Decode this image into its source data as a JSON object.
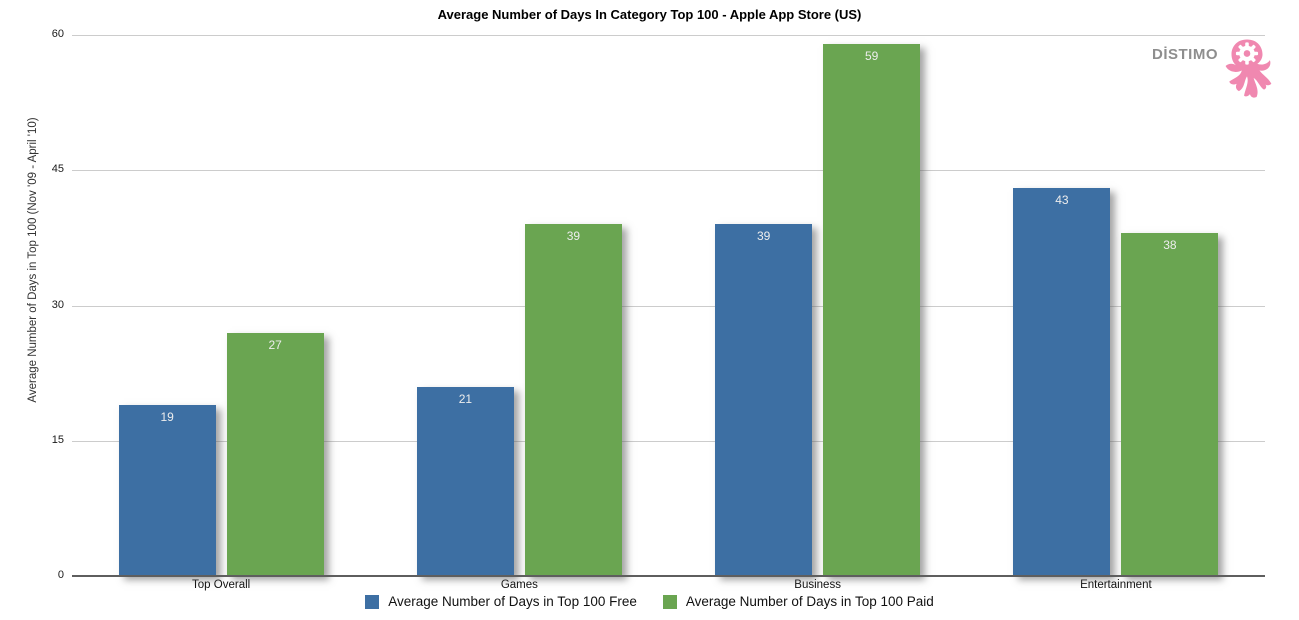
{
  "title": "Average Number of Days In Category Top 100 - Apple App Store (US)",
  "logo": {
    "text": "DİSTIMO",
    "icon": "octopus-gear-icon",
    "pink": "#f088b0",
    "gray": "#8e8e8e"
  },
  "chart_data": {
    "type": "bar",
    "categories": [
      "Top Overall",
      "Games",
      "Business",
      "Entertainment"
    ],
    "series": [
      {
        "name": "Average Number of Days in Top 100 Free",
        "color": "#3d6fa3",
        "values": [
          19,
          21,
          39,
          43
        ]
      },
      {
        "name": "Average Number of Days in Top 100 Paid",
        "color": "#6aa551",
        "values": [
          27,
          39,
          59,
          38
        ]
      }
    ],
    "title": "Average Number of Days In Category Top 100 - Apple App Store (US)",
    "xlabel": "",
    "ylabel": "Average Number of Days in Top 100 (Nov '09 - April '10)",
    "yticks": [
      0,
      15,
      30,
      45,
      60
    ],
    "ylim": [
      0,
      60
    ],
    "grid": true,
    "legend_position": "bottom",
    "value_labels": true,
    "gridline_color": "#cccccc",
    "baseline_color": "#5e5e5e"
  }
}
